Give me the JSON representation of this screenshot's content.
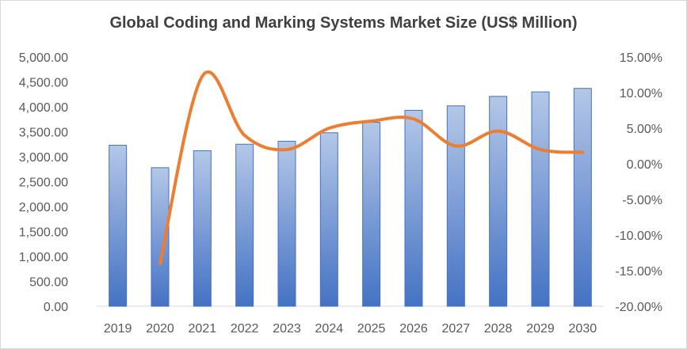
{
  "chart_data": {
    "type": "bar",
    "title": "Global Coding and Marking Systems Market Size (US$ Million)",
    "categories": [
      "2019",
      "2020",
      "2021",
      "2022",
      "2023",
      "2024",
      "2025",
      "2026",
      "2027",
      "2028",
      "2029",
      "2030"
    ],
    "series": [
      {
        "type": "bar",
        "axis": "left",
        "values": [
          3230,
          2780,
          3120,
          3250,
          3310,
          3480,
          3690,
          3930,
          4020,
          4210,
          4300,
          4370
        ]
      },
      {
        "type": "line",
        "axis": "right",
        "values": [
          null,
          -14.0,
          12.3,
          4.0,
          2.0,
          5.0,
          6.0,
          6.3,
          2.5,
          4.6,
          2.0,
          1.6
        ]
      }
    ],
    "y_left": {
      "min": 0,
      "max": 5000,
      "ticks": [
        0,
        500,
        1000,
        1500,
        2000,
        2500,
        3000,
        3500,
        4000,
        4500,
        5000
      ],
      "tick_labels": [
        "0.00",
        "500.00",
        "1,000.00",
        "1,500.00",
        "2,000.00",
        "2,500.00",
        "3,000.00",
        "3,500.00",
        "4,000.00",
        "4,500.00",
        "5,000.00"
      ]
    },
    "y_right": {
      "min": -20,
      "max": 15,
      "ticks": [
        -20,
        -15,
        -10,
        -5,
        0,
        5,
        10,
        15
      ],
      "tick_labels": [
        "-20.00%",
        "-15.00%",
        "-10.00%",
        "-5.00%",
        "0.00%",
        "5.00%",
        "10.00%",
        "15.00%"
      ]
    },
    "grid": false,
    "colors": {
      "bar_top": "#b4c7e7",
      "bar_bottom": "#4472c4",
      "bar_edge": "#4472c4",
      "line": "#ed7d31"
    }
  }
}
